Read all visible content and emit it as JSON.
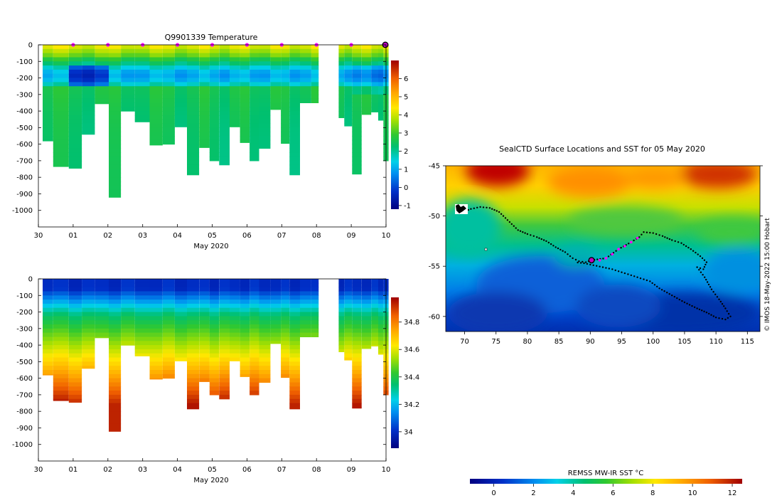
{
  "top_title": "Q9901339  Temperature",
  "map_title": "SealCTD Surface Locations and SST for 05 May 2020",
  "credit": "© IMOS 18-May-2022 15:00 Hobart",
  "colorbar_sst_label": "REMSS MW-IR SST °C",
  "time_axis_label": "May 2020",
  "chart_data": [
    {
      "type": "heatmap",
      "name": "temperature-section",
      "title": "Q9901339  Temperature",
      "xlabel": "May 2020",
      "xticks": [
        "30",
        "01",
        "02",
        "03",
        "04",
        "05",
        "06",
        "07",
        "08",
        "09",
        "10"
      ],
      "xlim": [
        0,
        10
      ],
      "ylim": [
        -1100,
        0
      ],
      "yticks": [
        "0",
        "-100",
        "-200",
        "-300",
        "-400",
        "-500",
        "-600",
        "-700",
        "-800",
        "-900",
        "-1000"
      ],
      "ytick_values": [
        0,
        -100,
        -200,
        -300,
        -400,
        -500,
        -600,
        -700,
        -800,
        -900,
        -1000
      ],
      "colorbar_ticks": [
        "6",
        "5",
        "4",
        "3",
        "2",
        "1",
        "0",
        "-1"
      ],
      "colorbar_values": [
        6,
        5,
        4,
        3,
        2,
        1,
        0,
        -1
      ],
      "colorbar_range": [
        -1.2,
        7
      ],
      "marker_days": [
        1,
        2,
        3,
        4,
        5,
        6,
        7,
        8,
        9
      ],
      "current_day": 10,
      "profiles": [
        {
          "t": 0.2,
          "d": 580
        },
        {
          "t": 0.65,
          "d": 735
        },
        {
          "t": 1.1,
          "d": 745
        },
        {
          "t": 1.4,
          "d": 540
        },
        {
          "t": 1.85,
          "d": 355
        },
        {
          "t": 2.2,
          "d": 920
        },
        {
          "t": 2.55,
          "d": 400
        },
        {
          "t": 3.0,
          "d": 465
        },
        {
          "t": 3.4,
          "d": 605
        },
        {
          "t": 3.75,
          "d": 600
        },
        {
          "t": 4.1,
          "d": 495
        },
        {
          "t": 4.45,
          "d": 785
        },
        {
          "t": 4.8,
          "d": 620
        },
        {
          "t": 5.05,
          "d": 700
        },
        {
          "t": 5.35,
          "d": 725
        },
        {
          "t": 5.65,
          "d": 495
        },
        {
          "t": 5.95,
          "d": 590
        },
        {
          "t": 6.2,
          "d": 700
        },
        {
          "t": 6.5,
          "d": 625
        },
        {
          "t": 6.85,
          "d": 390
        },
        {
          "t": 7.1,
          "d": 595
        },
        {
          "t": 7.35,
          "d": 785
        },
        {
          "t": 7.7,
          "d": 350
        },
        {
          "t": 8.0,
          "d": 350
        },
        {
          "t": 8.7,
          "d": 440
        },
        {
          "t": 8.9,
          "d": 490
        },
        {
          "t": 9.15,
          "d": 780
        },
        {
          "t": 9.45,
          "d": 420
        },
        {
          "t": 9.7,
          "d": 405
        },
        {
          "t": 9.85,
          "d": 455
        },
        {
          "t": 10.0,
          "d": 700
        }
      ]
    },
    {
      "type": "heatmap",
      "name": "salinity-section",
      "title": "",
      "xlabel": "May 2020",
      "xticks": [
        "30",
        "01",
        "02",
        "03",
        "04",
        "05",
        "06",
        "07",
        "08",
        "09",
        "10"
      ],
      "xlim": [
        0,
        10
      ],
      "ylim": [
        -1100,
        0
      ],
      "yticks": [
        "0",
        "-100",
        "-200",
        "-300",
        "-400",
        "-500",
        "-600",
        "-700",
        "-800",
        "-900",
        "-1000"
      ],
      "ytick_values": [
        0,
        -100,
        -200,
        -300,
        -400,
        -500,
        -600,
        -700,
        -800,
        -900,
        -1000
      ],
      "colorbar_ticks": [
        "34.8",
        "34.6",
        "34.4",
        "34.2",
        "34"
      ],
      "colorbar_values": [
        34.8,
        34.6,
        34.4,
        34.2,
        34.0
      ],
      "colorbar_range": [
        33.88,
        34.98
      ]
    },
    {
      "type": "heatmap",
      "name": "sst-map",
      "title": "SealCTD Surface Locations and SST for 05 May 2020",
      "xticks": [
        "70",
        "75",
        "80",
        "85",
        "90",
        "95",
        "100",
        "105",
        "110",
        "115"
      ],
      "xtick_values": [
        70,
        75,
        80,
        85,
        90,
        95,
        100,
        105,
        110,
        115
      ],
      "yticks": [
        "-45",
        "-50",
        "-55",
        "-60"
      ],
      "ytick_values": [
        -45,
        -50,
        -55,
        -60
      ],
      "xlim": [
        67,
        117
      ],
      "ylim": [
        -61.5,
        -45
      ],
      "colorbar_label": "REMSS MW-IR SST °C",
      "colorbar_ticks": [
        "0",
        "2",
        "4",
        "6",
        "8",
        "10",
        "12"
      ],
      "colorbar_values": [
        0,
        2,
        4,
        6,
        8,
        10,
        12
      ],
      "colorbar_range": [
        -1.2,
        12.5
      ],
      "current_position": {
        "lon": 90.2,
        "lat": -54.4
      },
      "recent_track": [
        [
          90.2,
          -54.4
        ],
        [
          91.5,
          -54.4
        ],
        [
          92.5,
          -54.2
        ],
        [
          93.5,
          -53.8
        ],
        [
          94.5,
          -53.3
        ],
        [
          95.5,
          -53.0
        ],
        [
          96.5,
          -52.6
        ],
        [
          97.5,
          -52.2
        ]
      ],
      "track": [
        [
          69.8,
          -49.6
        ],
        [
          71,
          -49.3
        ],
        [
          72.5,
          -49.1
        ],
        [
          74,
          -49.2
        ],
        [
          75.5,
          -49.6
        ],
        [
          76.5,
          -50.2
        ],
        [
          77.5,
          -50.8
        ],
        [
          78.5,
          -51.4
        ],
        [
          80,
          -51.8
        ],
        [
          81.5,
          -52.1
        ],
        [
          83,
          -52.5
        ],
        [
          84.5,
          -53.1
        ],
        [
          86,
          -53.6
        ],
        [
          87.2,
          -54.2
        ],
        [
          88.2,
          -54.5
        ],
        [
          89.3,
          -54.6
        ],
        [
          90.2,
          -54.4
        ],
        [
          92.5,
          -54.2
        ],
        [
          94.5,
          -53.3
        ],
        [
          96.5,
          -52.6
        ],
        [
          97.8,
          -52.1
        ],
        [
          98.5,
          -51.6
        ],
        [
          100,
          -51.7
        ],
        [
          101.5,
          -52.0
        ],
        [
          103,
          -52.4
        ],
        [
          104.5,
          -52.7
        ],
        [
          106,
          -53.3
        ],
        [
          107.5,
          -54.0
        ],
        [
          108.5,
          -54.6
        ],
        [
          108,
          -55.3
        ],
        [
          107,
          -55.1
        ],
        [
          108.2,
          -56.1
        ],
        [
          109.3,
          -57.3
        ],
        [
          110.5,
          -58.3
        ],
        [
          111.5,
          -59.2
        ],
        [
          112.3,
          -60.0
        ],
        [
          111.5,
          -60.3
        ],
        [
          110,
          -60.1
        ],
        [
          108.5,
          -59.6
        ],
        [
          107,
          -59.2
        ],
        [
          105,
          -58.6
        ],
        [
          103,
          -57.9
        ],
        [
          101,
          -57.2
        ],
        [
          99.5,
          -56.5
        ],
        [
          98,
          -56.2
        ],
        [
          96.5,
          -55.9
        ],
        [
          95,
          -55.6
        ],
        [
          93.5,
          -55.3
        ],
        [
          92,
          -55.1
        ],
        [
          90.5,
          -54.9
        ],
        [
          89,
          -54.7
        ],
        [
          87.5,
          -54.6
        ]
      ]
    }
  ]
}
